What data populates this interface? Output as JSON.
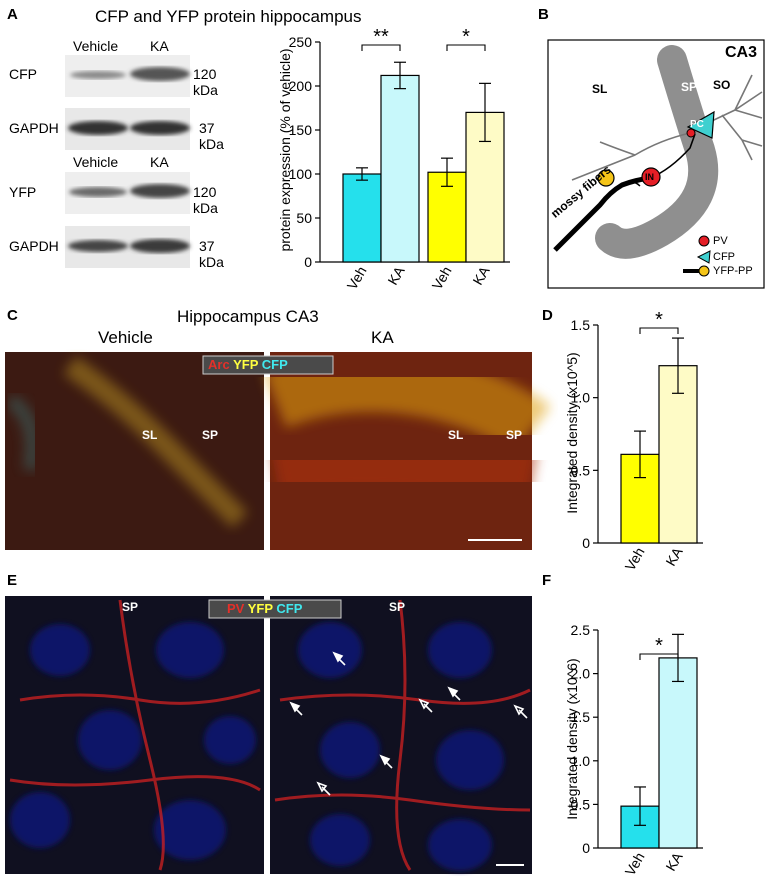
{
  "panels": {
    "A": {
      "label": "A",
      "title": "CFP and YFP protein hippocampus",
      "blot_top": {
        "cond_1": "Vehicle",
        "cond_2": "KA",
        "row_1": "CFP",
        "row_1_kda": "120 kDa",
        "row_2": "GAPDH",
        "row_2_kda": "37 kDa"
      },
      "blot_bottom": {
        "cond_1": "Vehicle",
        "cond_2": "KA",
        "row_1": "YFP",
        "row_1_kda": "120 kDa",
        "row_2": "GAPDH",
        "row_2_kda": "37 kDa"
      }
    },
    "B": {
      "label": "B",
      "region": "CA3",
      "layer_sl": "SL",
      "layer_sp": "SP",
      "layer_so": "SO",
      "cell_pc": "PC",
      "cell_in": "IN",
      "fibers": "mossy fibers",
      "legend": [
        {
          "label": "PV",
          "color": "#e41e26"
        },
        {
          "label": "CFP",
          "color": "#3fd0d0"
        },
        {
          "label": "YFP-PP",
          "color": "#f5c518"
        }
      ]
    },
    "C": {
      "label": "C",
      "title": "Hippocampus CA3",
      "left_label": "Vehicle",
      "right_label": "KA",
      "stain_1": "Arc",
      "stain_2": "YFP",
      "stain_3": "CFP",
      "sl": "SL",
      "sp": "SP"
    },
    "D": {
      "label": "D"
    },
    "E": {
      "label": "E",
      "stain_1": "PV",
      "stain_2": "YFP",
      "stain_3": "CFP",
      "sp": "SP"
    },
    "F": {
      "label": "F"
    }
  },
  "chart_data": [
    {
      "id": "A",
      "type": "bar",
      "categories": [
        "Veh",
        "KA",
        "Veh",
        "KA"
      ],
      "values": [
        100,
        212,
        102,
        170
      ],
      "errors": [
        7,
        15,
        16,
        33
      ],
      "colors": [
        "#25e0ec",
        "#c8f8fb",
        "#ffff00",
        "#fefbc6"
      ],
      "ylabel": "protein expression (% of vehicle)",
      "ylim": [
        0,
        250
      ],
      "yticks": [
        0,
        50,
        100,
        150,
        200,
        250
      ],
      "significance": [
        {
          "pair": [
            0,
            1
          ],
          "text": "**"
        },
        {
          "pair": [
            2,
            3
          ],
          "text": "*"
        }
      ]
    },
    {
      "id": "D",
      "type": "bar",
      "categories": [
        "Veh",
        "KA"
      ],
      "values": [
        0.61,
        1.22
      ],
      "errors": [
        0.16,
        0.19
      ],
      "colors": [
        "#ffff00",
        "#fefbc6"
      ],
      "ylabel": "Integrated density (x10^5)",
      "ylim": [
        0,
        1.5
      ],
      "yticks": [
        0,
        0.5,
        1.0,
        1.5
      ],
      "ytick_labels": [
        "0",
        "0.5",
        "1.0",
        "1.5"
      ],
      "significance": [
        {
          "pair": [
            0,
            1
          ],
          "text": "*"
        }
      ]
    },
    {
      "id": "F",
      "type": "bar",
      "categories": [
        "Veh",
        "KA"
      ],
      "values": [
        0.48,
        2.18
      ],
      "errors": [
        0.22,
        0.27
      ],
      "colors": [
        "#25e0ec",
        "#c8f8fb"
      ],
      "ylabel": "Integrated density (x10^6)",
      "ylim": [
        0,
        2.5
      ],
      "yticks": [
        0,
        0.5,
        1.0,
        1.5,
        2.0,
        2.5
      ],
      "ytick_labels": [
        "0",
        "0.5",
        "1.0",
        "1.5",
        "2.0",
        "2.5"
      ],
      "significance": [
        {
          "pair": [
            0,
            1
          ],
          "text": "*"
        }
      ]
    }
  ]
}
